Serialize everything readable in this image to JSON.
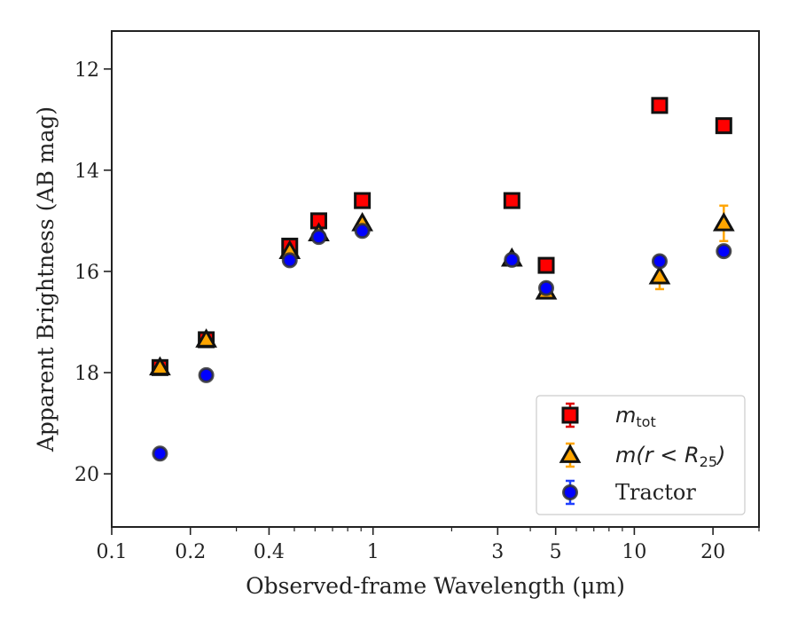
{
  "chart_data": {
    "type": "scatter",
    "xlabel": "Observed-frame Wavelength (μm)",
    "ylabel": "Apparent Brightness (AB mag)",
    "xscale": "log",
    "xlim": [
      0.1,
      30
    ],
    "ylim": [
      21.05,
      11.25
    ],
    "y_inverted": true,
    "x_ticks": [
      0.1,
      0.2,
      0.4,
      1,
      3,
      5,
      10,
      20
    ],
    "x_tick_labels": [
      "0.1",
      "0.2",
      "0.4",
      "1",
      "3",
      "5",
      "10",
      "20"
    ],
    "y_ticks": [
      12,
      14,
      16,
      18,
      20
    ],
    "y_tick_labels": [
      "12",
      "14",
      "16",
      "18",
      "20"
    ],
    "grid": false,
    "legend_position": "lower-right",
    "series": [
      {
        "name_main": "m",
        "name_sub": "tot",
        "marker": "square",
        "color": "#ff0000",
        "edge": "#111111",
        "errcolor": "#dd0000",
        "x": [
          0.153,
          0.23,
          0.48,
          0.62,
          0.91,
          3.4,
          4.6,
          12.5,
          22.0
        ],
        "y": [
          17.9,
          17.35,
          15.5,
          15.0,
          14.6,
          14.6,
          15.88,
          12.72,
          13.12
        ],
        "err": [
          0.05,
          0.05,
          0.05,
          0.05,
          0.05,
          0.05,
          0.05,
          0.05,
          0.05
        ]
      },
      {
        "name_main": "m(r < R",
        "name_sub": "25",
        "name_end": ")",
        "marker": "triangle",
        "color": "#ffa500",
        "edge": "#111111",
        "errcolor": "#ffa500",
        "x": [
          0.153,
          0.23,
          0.48,
          0.62,
          0.91,
          3.4,
          4.6,
          12.5,
          22.0
        ],
        "y": [
          17.9,
          17.35,
          15.6,
          15.25,
          15.05,
          15.75,
          16.4,
          16.1,
          15.05
        ],
        "err": [
          0.05,
          0.05,
          0.05,
          0.05,
          0.05,
          0.05,
          0.05,
          0.25,
          0.35
        ]
      },
      {
        "name": "Tractor",
        "marker": "circle",
        "color": "#0000ff",
        "edge": "#333333",
        "errcolor": "#1f3fff",
        "x": [
          0.153,
          0.23,
          0.48,
          0.62,
          0.91,
          3.4,
          4.6,
          12.5,
          22.0
        ],
        "y": [
          19.6,
          18.05,
          15.78,
          15.32,
          15.2,
          15.77,
          16.33,
          15.8,
          15.6
        ],
        "err": [
          0.05,
          0.05,
          0.05,
          0.05,
          0.05,
          0.05,
          0.1,
          0.05,
          0.05
        ]
      }
    ]
  }
}
